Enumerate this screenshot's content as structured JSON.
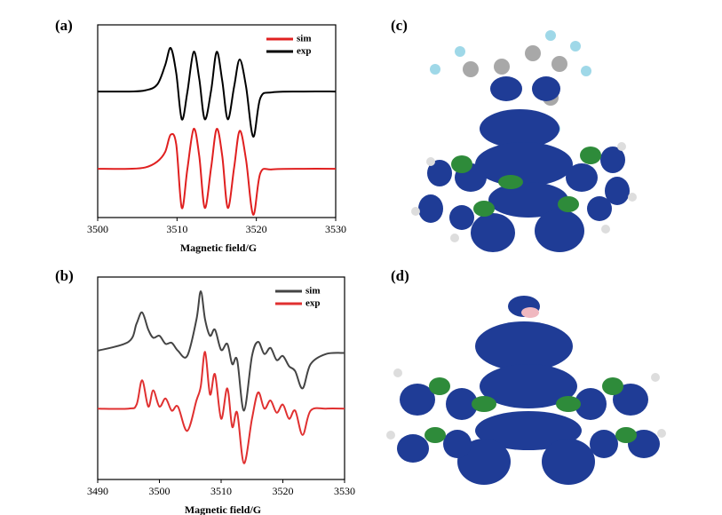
{
  "chart_data": [
    {
      "type": "line",
      "title": "(a)",
      "x_label": "Magnetic field/G",
      "xlim": [
        3500,
        3530
      ],
      "xticks": [
        3500,
        3510,
        3520,
        3530
      ],
      "ylim": [
        0,
        10
      ],
      "grid": false,
      "legend": "upper right",
      "x": [
        3500,
        3504,
        3506,
        3507.5,
        3508.5,
        3509.2,
        3509.9,
        3510.6,
        3511.3,
        3512.1,
        3512.8,
        3513.5,
        3514.3,
        3515.0,
        3515.7,
        3516.4,
        3517.2,
        3517.9,
        3518.7,
        3519.6,
        3520.5,
        3522,
        3526,
        3530
      ],
      "series": [
        {
          "name": "sim",
          "color": "#e02020",
          "values": [
            2.53,
            2.53,
            2.6,
            2.9,
            3.4,
            4.3,
            3.8,
            0.5,
            2.5,
            4.6,
            3.2,
            0.5,
            2.6,
            4.6,
            3.2,
            0.5,
            2.6,
            4.5,
            3.0,
            0.15,
            2.3,
            2.5,
            2.53,
            2.53
          ]
        },
        {
          "name": "exp",
          "color": "#000000",
          "values": [
            6.54,
            6.54,
            6.6,
            6.9,
            7.9,
            8.8,
            7.5,
            5.1,
            6.5,
            8.6,
            7.2,
            5.1,
            6.6,
            8.6,
            7.1,
            5.1,
            6.8,
            8.2,
            6.8,
            4.2,
            6.2,
            6.5,
            6.54,
            6.54
          ]
        }
      ]
    },
    {
      "type": "line",
      "title": "(b)",
      "x_label": "Magnetic field/G",
      "xlim": [
        3490,
        3530
      ],
      "xticks": [
        3490,
        3500,
        3510,
        3520,
        3530
      ],
      "ylim": [
        0,
        10
      ],
      "grid": false,
      "legend": "upper right",
      "x": [
        3490,
        3495,
        3496.3,
        3497.2,
        3498.2,
        3499,
        3500,
        3501,
        3502,
        3503,
        3504.5,
        3506,
        3506.7,
        3507.4,
        3508.2,
        3509,
        3510,
        3511,
        3511.8,
        3512.6,
        3513.7,
        3515,
        3516,
        3517,
        3518,
        3519,
        3520,
        3521,
        3522,
        3523.2,
        3524.5,
        3527,
        3530
      ],
      "series": [
        {
          "name": "sim",
          "color": "#444444",
          "values": [
            6.36,
            6.8,
            7.7,
            8.25,
            7.4,
            7.0,
            7.1,
            6.7,
            6.75,
            6.36,
            6.1,
            7.9,
            9.3,
            7.9,
            7.1,
            7.4,
            6.4,
            6.7,
            5.7,
            5.9,
            3.4,
            6.1,
            6.8,
            6.2,
            6.5,
            5.9,
            6.1,
            5.6,
            5.35,
            4.5,
            5.7,
            6.2,
            6.25
          ]
        },
        {
          "name": "exp",
          "color": "#e03030",
          "values": [
            3.5,
            3.5,
            3.7,
            4.9,
            3.6,
            4.4,
            3.6,
            4.0,
            3.4,
            3.6,
            2.4,
            3.9,
            4.6,
            6.3,
            4.2,
            5.2,
            3.0,
            4.5,
            2.6,
            3.3,
            0.8,
            3.0,
            4.3,
            3.5,
            3.9,
            3.3,
            3.7,
            3.0,
            3.4,
            2.2,
            3.4,
            3.5,
            3.5
          ]
        }
      ]
    }
  ],
  "images": [
    {
      "label": "(c)"
    },
    {
      "label": "(d)"
    }
  ]
}
